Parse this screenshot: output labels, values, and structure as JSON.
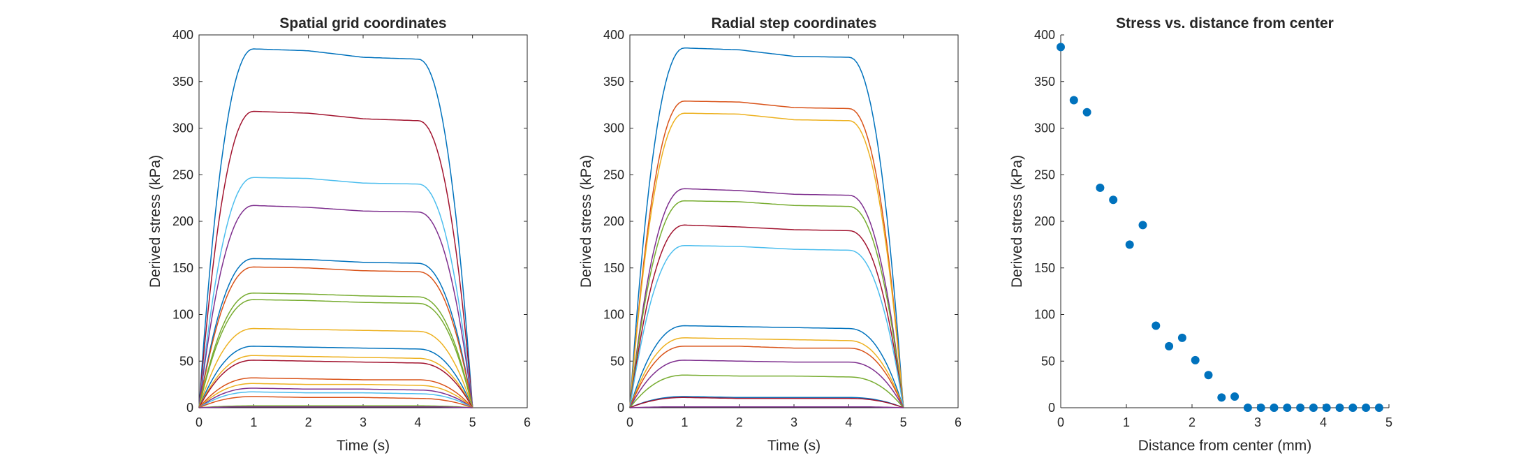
{
  "palette": [
    "#0072BD",
    "#D95319",
    "#EDB120",
    "#7E2F8E",
    "#77AC30",
    "#4DBEEE",
    "#A2142F"
  ],
  "chart_data": [
    {
      "type": "line",
      "title": "Spatial grid coordinates",
      "xlabel": "Time (s)",
      "ylabel": "Derived stress (kPa)",
      "xlim": [
        0,
        6
      ],
      "ylim": [
        0,
        400
      ],
      "xticks": [
        "0",
        "1",
        "2",
        "3",
        "4",
        "5",
        "6"
      ],
      "yticks": [
        "0",
        "50",
        "100",
        "150",
        "200",
        "250",
        "300",
        "350",
        "400"
      ],
      "series": [
        {
          "color": "#0072BD",
          "values": [
            0,
            385,
            383,
            376,
            374,
            0
          ]
        },
        {
          "color": "#A2142F",
          "values": [
            0,
            318,
            316,
            310,
            308,
            0
          ]
        },
        {
          "color": "#4DBEEE",
          "values": [
            0,
            247,
            246,
            241,
            240,
            0
          ]
        },
        {
          "color": "#7E2F8E",
          "values": [
            0,
            217,
            215,
            211,
            210,
            0
          ]
        },
        {
          "color": "#0072BD",
          "values": [
            0,
            160,
            159,
            156,
            155,
            0
          ]
        },
        {
          "color": "#D95319",
          "values": [
            0,
            151,
            150,
            147,
            146,
            0
          ]
        },
        {
          "color": "#77AC30",
          "values": [
            0,
            123,
            122,
            120,
            119,
            0
          ]
        },
        {
          "color": "#77AC30",
          "values": [
            0,
            116,
            115,
            113,
            112,
            0
          ]
        },
        {
          "color": "#EDB120",
          "values": [
            0,
            85,
            84,
            83,
            82,
            0
          ]
        },
        {
          "color": "#0072BD",
          "values": [
            0,
            66,
            65,
            64,
            63,
            0
          ]
        },
        {
          "color": "#EDB120",
          "values": [
            0,
            56,
            55,
            54,
            53,
            0
          ]
        },
        {
          "color": "#A2142F",
          "values": [
            0,
            51,
            50,
            49,
            48,
            0
          ]
        },
        {
          "color": "#D95319",
          "values": [
            0,
            32,
            31,
            30,
            30,
            0
          ]
        },
        {
          "color": "#EDB120",
          "values": [
            0,
            26,
            25,
            25,
            24,
            0
          ]
        },
        {
          "color": "#7E2F8E",
          "values": [
            0,
            21,
            20,
            20,
            19,
            0
          ]
        },
        {
          "color": "#4DBEEE",
          "values": [
            0,
            17,
            16,
            16,
            15,
            0
          ]
        },
        {
          "color": "#D95319",
          "values": [
            0,
            12,
            11,
            11,
            10,
            0
          ]
        },
        {
          "color": "#77AC30",
          "values": [
            0,
            2,
            2,
            2,
            2,
            0
          ]
        },
        {
          "color": "#7E2F8E",
          "values": [
            0,
            1,
            1,
            1,
            1,
            0
          ]
        }
      ]
    },
    {
      "type": "line",
      "title": "Radial step coordinates",
      "xlabel": "Time (s)",
      "ylabel": "Derived stress (kPa)",
      "xlim": [
        0,
        6
      ],
      "ylim": [
        0,
        400
      ],
      "xticks": [
        "0",
        "1",
        "2",
        "3",
        "4",
        "5",
        "6"
      ],
      "yticks": [
        "0",
        "50",
        "100",
        "150",
        "200",
        "250",
        "300",
        "350",
        "400"
      ],
      "series": [
        {
          "color": "#0072BD",
          "values": [
            0,
            386,
            384,
            377,
            376,
            0
          ]
        },
        {
          "color": "#D95319",
          "values": [
            0,
            329,
            328,
            322,
            321,
            0
          ]
        },
        {
          "color": "#EDB120",
          "values": [
            0,
            316,
            315,
            309,
            308,
            0
          ]
        },
        {
          "color": "#7E2F8E",
          "values": [
            0,
            235,
            233,
            229,
            228,
            0
          ]
        },
        {
          "color": "#77AC30",
          "values": [
            0,
            222,
            221,
            217,
            216,
            0
          ]
        },
        {
          "color": "#A2142F",
          "values": [
            0,
            196,
            194,
            191,
            190,
            0
          ]
        },
        {
          "color": "#4DBEEE",
          "values": [
            0,
            174,
            173,
            170,
            169,
            0
          ]
        },
        {
          "color": "#0072BD",
          "values": [
            0,
            88,
            87,
            86,
            85,
            0
          ]
        },
        {
          "color": "#EDB120",
          "values": [
            0,
            75,
            74,
            73,
            72,
            0
          ]
        },
        {
          "color": "#D95319",
          "values": [
            0,
            66,
            66,
            64,
            64,
            0
          ]
        },
        {
          "color": "#7E2F8E",
          "values": [
            0,
            51,
            50,
            49,
            49,
            0
          ]
        },
        {
          "color": "#77AC30",
          "values": [
            0,
            35,
            34,
            34,
            33,
            0
          ]
        },
        {
          "color": "#0072BD",
          "values": [
            0,
            12,
            11,
            11,
            11,
            0
          ]
        },
        {
          "color": "#A2142F",
          "values": [
            0,
            11,
            10,
            10,
            10,
            0
          ]
        },
        {
          "color": "#7E2F8E",
          "values": [
            0,
            1,
            1,
            1,
            1,
            0
          ]
        }
      ]
    },
    {
      "type": "scatter",
      "title": "Stress vs. distance from center",
      "xlabel": "Distance from center (mm)",
      "ylabel": "Derived stress (kPa)",
      "xlim": [
        0,
        5
      ],
      "ylim": [
        0,
        400
      ],
      "xticks": [
        "0",
        "1",
        "2",
        "3",
        "4",
        "5"
      ],
      "yticks": [
        "0",
        "50",
        "100",
        "150",
        "200",
        "250",
        "300",
        "350",
        "400"
      ],
      "color": "#0072BD",
      "x": [
        0,
        0.2,
        0.4,
        0.6,
        0.8,
        1.05,
        1.25,
        1.45,
        1.65,
        1.85,
        2.05,
        2.25,
        2.45,
        2.65,
        2.85,
        3.05,
        3.25,
        3.45,
        3.65,
        3.85,
        4.05,
        4.25,
        4.45,
        4.65,
        4.85
      ],
      "y": [
        387,
        330,
        317,
        236,
        223,
        175,
        196,
        88,
        66,
        75,
        51,
        35,
        11,
        12,
        0,
        0,
        0,
        0,
        0,
        0,
        0,
        0,
        0,
        0,
        0
      ]
    }
  ]
}
